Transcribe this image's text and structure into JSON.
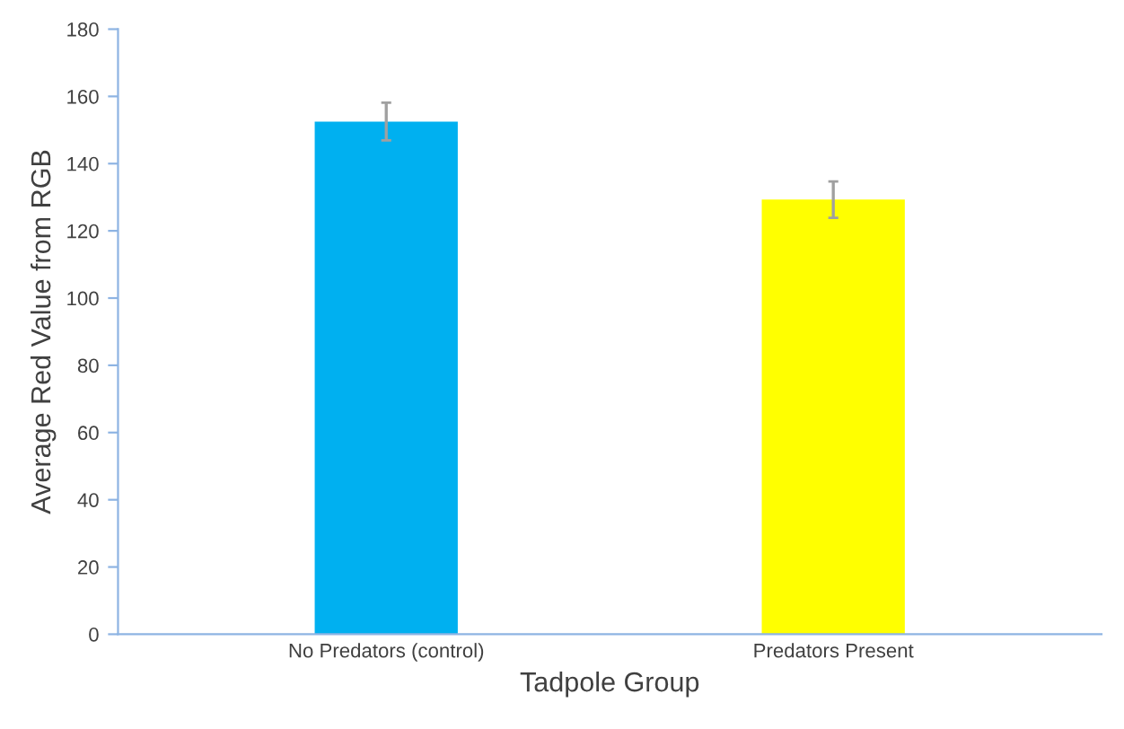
{
  "chart_data": {
    "type": "bar",
    "xlabel": "Tadpole Group",
    "ylabel": "Average Red Value from RGB",
    "categories": [
      "No Predators (control)",
      "Predators Present"
    ],
    "values": [
      152.5,
      129.3
    ],
    "colors": [
      "#00b0f0",
      "#ffff00"
    ],
    "errors": [
      5.6,
      5.4
    ],
    "ylim": [
      0,
      180
    ],
    "yticks": [
      0,
      20,
      40,
      60,
      80,
      100,
      120,
      140,
      160,
      180
    ],
    "grid": false,
    "legend": false
  }
}
